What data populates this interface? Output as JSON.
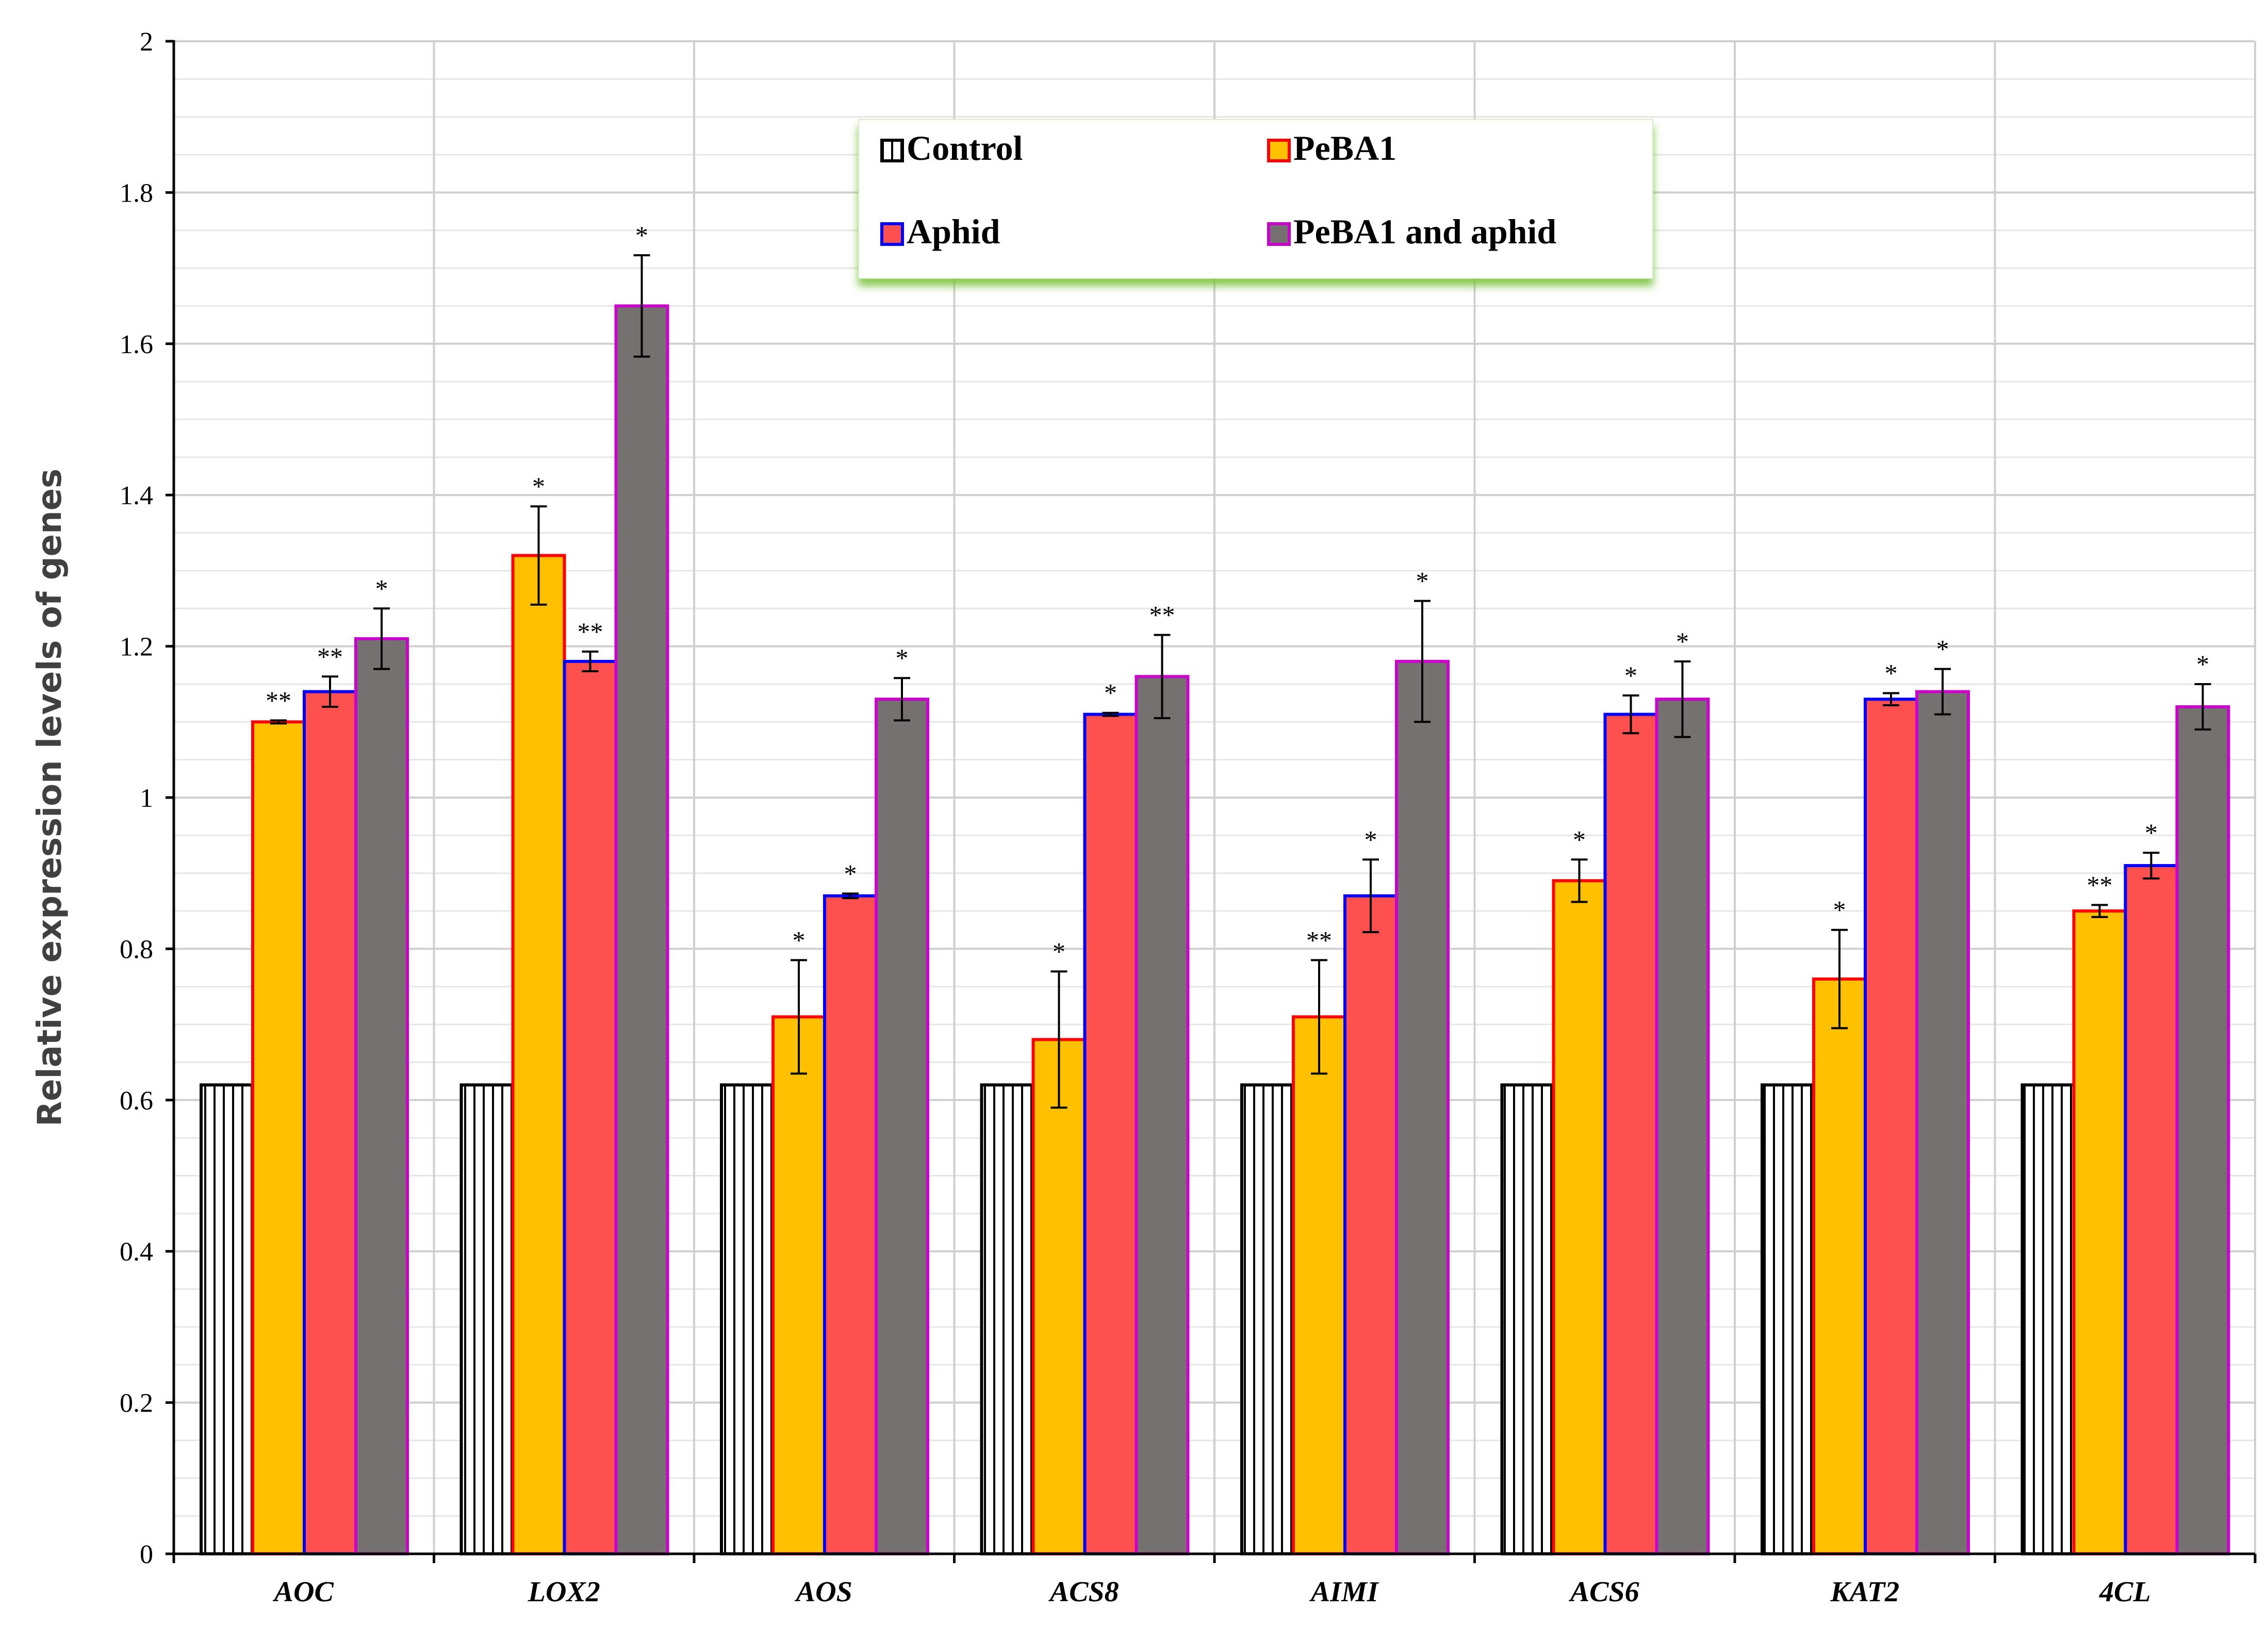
{
  "chart_data": {
    "type": "bar",
    "title": "",
    "xlabel": "",
    "ylabel": "Relative expression levels of genes",
    "ylim": [
      0,
      2
    ],
    "yticks": [
      "0",
      "0.2",
      "0.4",
      "0.6",
      "0.8",
      "1",
      "1.2",
      "1.4",
      "1.6",
      "1.8",
      "2"
    ],
    "ytick_values": [
      0,
      0.2,
      0.4,
      0.6,
      0.8,
      1,
      1.2,
      1.4,
      1.6,
      1.8,
      2
    ],
    "grid": true,
    "legend_position": "top-center",
    "categories": [
      "AOC",
      "LOX2",
      "AOS",
      "ACS8",
      "AIMI",
      "ACS6",
      "KAT2",
      "4CL"
    ],
    "series": [
      {
        "name": "Control",
        "fill": "#ffffff",
        "stroke": "#000000",
        "pattern": "vertical-stripes",
        "values": [
          0.62,
          0.62,
          0.62,
          0.62,
          0.62,
          0.62,
          0.62,
          0.62
        ],
        "errors": [
          0,
          0,
          0,
          0,
          0,
          0,
          0,
          0
        ],
        "significance": [
          "",
          "",
          "",
          "",
          "",
          "",
          "",
          ""
        ]
      },
      {
        "name": "PeBA1",
        "fill": "#ffc000",
        "stroke": "#ff0000",
        "pattern": "solid",
        "values": [
          1.1,
          1.32,
          0.71,
          0.68,
          0.71,
          0.89,
          0.76,
          0.85
        ],
        "errors": [
          0.002,
          0.065,
          0.075,
          0.09,
          0.075,
          0.028,
          0.065,
          0.008
        ],
        "significance": [
          "**",
          "*",
          "*",
          "*",
          "**",
          "*",
          "*",
          "**"
        ]
      },
      {
        "name": "Aphid",
        "fill": "#ff5050",
        "stroke": "#0000ff",
        "pattern": "solid",
        "values": [
          1.14,
          1.18,
          0.87,
          1.11,
          0.87,
          1.11,
          1.13,
          0.91
        ],
        "errors": [
          0.02,
          0.013,
          0.003,
          0.002,
          0.048,
          0.025,
          0.008,
          0.017
        ],
        "significance": [
          "**",
          "**",
          "*",
          "*",
          "*",
          "*",
          "*",
          "*"
        ]
      },
      {
        "name": "PeBA1 and aphid",
        "fill": "#767171",
        "stroke": "#cc00cc",
        "pattern": "solid",
        "values": [
          1.21,
          1.65,
          1.13,
          1.16,
          1.18,
          1.13,
          1.14,
          1.12
        ],
        "errors": [
          0.04,
          0.067,
          0.028,
          0.055,
          0.08,
          0.05,
          0.03,
          0.03
        ],
        "significance": [
          "*",
          "*",
          "*",
          "**",
          "*",
          "*",
          "*",
          "*"
        ]
      }
    ]
  }
}
